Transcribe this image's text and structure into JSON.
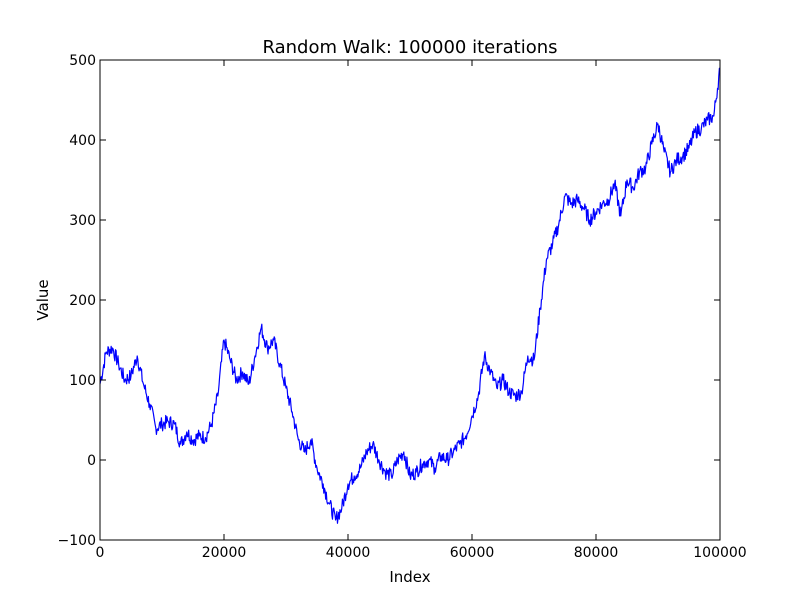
{
  "chart_data": {
    "type": "line",
    "title": "Random Walk: 100000 iterations",
    "xlabel": "Index",
    "ylabel": "Value",
    "xlim": [
      0,
      100000
    ],
    "ylim": [
      -100,
      500
    ],
    "xticks": [
      0,
      20000,
      40000,
      60000,
      80000,
      100000
    ],
    "yticks": [
      -100,
      0,
      100,
      200,
      300,
      400,
      500
    ],
    "xtick_labels": [
      "0",
      "20000",
      "40000",
      "60000",
      "80000",
      "100000"
    ],
    "ytick_labels": [
      "−100",
      "0",
      "100",
      "200",
      "300",
      "400",
      "500"
    ],
    "grid": false,
    "series": [
      {
        "color": "#0000ff",
        "x": [
          0,
          1000,
          2000,
          3000,
          4000,
          5000,
          6000,
          7000,
          8000,
          9000,
          10000,
          11000,
          12000,
          13000,
          14000,
          15000,
          16000,
          17000,
          18000,
          19000,
          20000,
          21000,
          22000,
          23000,
          24000,
          25000,
          26000,
          27000,
          28000,
          29000,
          30000,
          31000,
          32000,
          33000,
          34000,
          35000,
          36000,
          37000,
          38000,
          39000,
          40000,
          41000,
          42000,
          43000,
          44000,
          45000,
          46000,
          47000,
          48000,
          49000,
          50000,
          51000,
          52000,
          53000,
          54000,
          55000,
          56000,
          57000,
          58000,
          59000,
          60000,
          61000,
          62000,
          63000,
          64000,
          65000,
          66000,
          67000,
          68000,
          69000,
          70000,
          71000,
          72000,
          73000,
          74000,
          75000,
          76000,
          77000,
          78000,
          79000,
          80000,
          81000,
          82000,
          83000,
          84000,
          85000,
          86000,
          87000,
          88000,
          89000,
          90000,
          91000,
          92000,
          93000,
          94000,
          95000,
          96000,
          97000,
          98000,
          99000,
          100000
        ],
        "y": [
          95,
          135,
          140,
          120,
          100,
          105,
          130,
          95,
          70,
          40,
          45,
          48,
          45,
          20,
          35,
          25,
          30,
          28,
          45,
          80,
          150,
          125,
          100,
          110,
          95,
          130,
          165,
          140,
          150,
          120,
          90,
          60,
          25,
          10,
          25,
          -10,
          -30,
          -55,
          -75,
          -60,
          -30,
          -20,
          -10,
          10,
          20,
          0,
          -15,
          -20,
          0,
          10,
          -20,
          -15,
          -5,
          0,
          -10,
          5,
          0,
          10,
          20,
          30,
          55,
          80,
          130,
          110,
          90,
          100,
          85,
          80,
          85,
          130,
          125,
          190,
          250,
          270,
          295,
          330,
          320,
          325,
          315,
          300,
          310,
          320,
          325,
          345,
          305,
          350,
          340,
          360,
          365,
          395,
          420,
          385,
          360,
          375,
          380,
          390,
          410,
          415,
          425,
          430,
          490
        ]
      }
    ]
  }
}
